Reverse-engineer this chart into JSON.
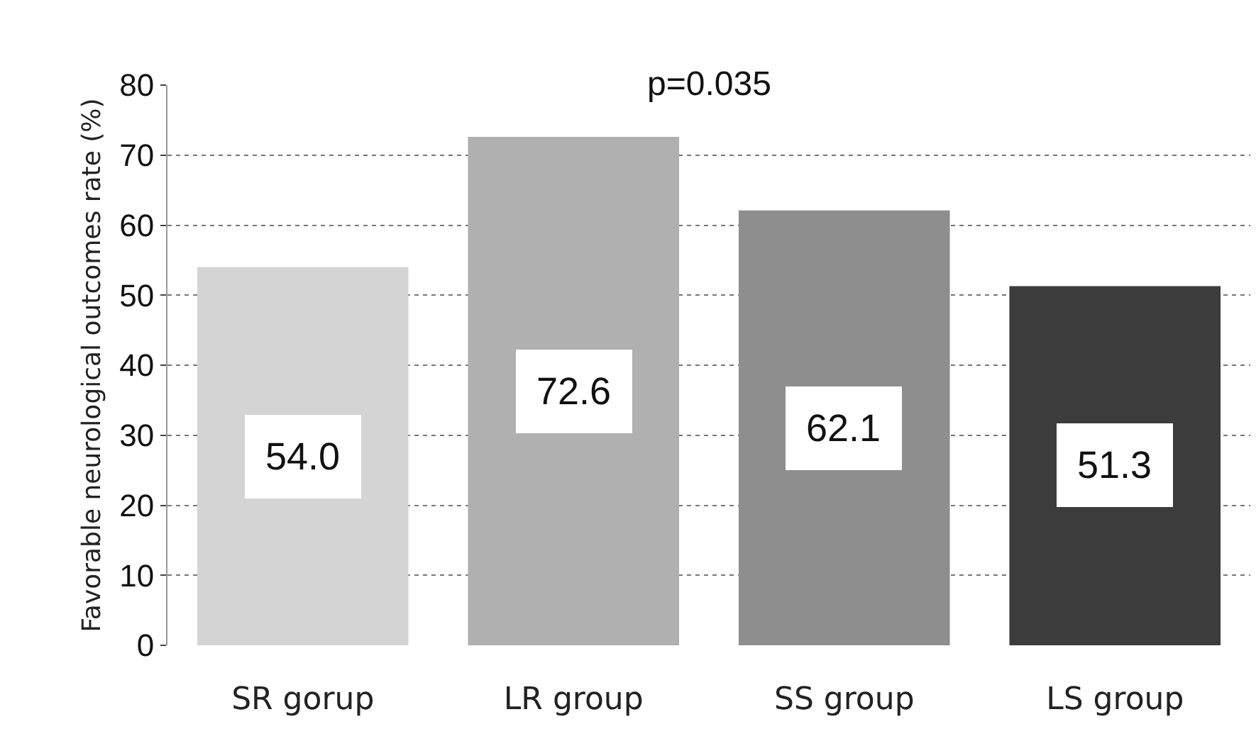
{
  "chart_data": {
    "type": "bar",
    "ylabel": "Favorable neurological outcomes rate (%)",
    "categories": [
      "SR gorup",
      "LR group",
      "SS group",
      "LS group"
    ],
    "values": [
      54.0,
      72.6,
      62.1,
      51.3
    ],
    "value_labels": [
      "54.0",
      "72.6",
      "62.1",
      "51.3"
    ],
    "colors": [
      "#d4d4d4",
      "#b0b0b0",
      "#8e8e8e",
      "#3c3c3c"
    ],
    "ylim": [
      0,
      80
    ],
    "yticks": [
      0,
      10,
      20,
      30,
      40,
      50,
      60,
      70,
      80
    ],
    "grid": "y",
    "annotations": [
      "p=0.035"
    ]
  }
}
